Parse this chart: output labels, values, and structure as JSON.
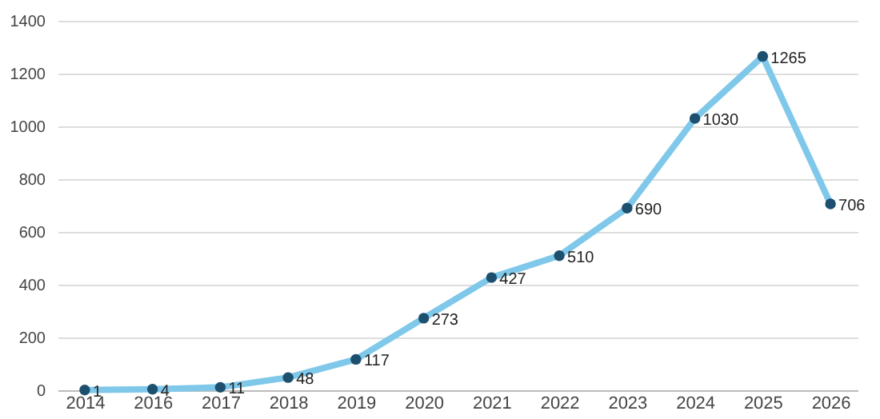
{
  "chart_data": {
    "type": "line",
    "categories": [
      "2014",
      "2016",
      "2017",
      "2018",
      "2019",
      "2020",
      "2021",
      "2022",
      "2023",
      "2024",
      "2025",
      "2026"
    ],
    "series": [
      {
        "color": "#7fc8ea",
        "colors": [
          "#1d4f6e",
          "#1d4f6e",
          "#1d4f6e",
          "#1d4f6e",
          "#1d4f6e",
          "#1d4f6e",
          "#1d4f6e",
          "#1d4f6e",
          "#1d4f6e",
          "#1d4f6e",
          "#1d4f6e",
          "#1d4f6e"
        ],
        "values": [
          1,
          4,
          11,
          48,
          117,
          273,
          427,
          510,
          690,
          1030,
          1265,
          706
        ]
      }
    ],
    "ylim": [
      0,
      1400
    ],
    "yticks": [
      0,
      200,
      400,
      600,
      800,
      1000,
      1200,
      1400
    ],
    "grid": "y",
    "marker": "circle",
    "line_style": "solid",
    "data_labels": true
  }
}
